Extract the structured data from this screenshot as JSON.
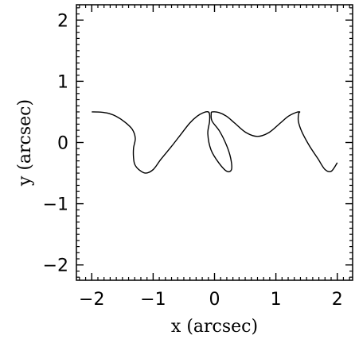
{
  "chart_data": {
    "type": "line",
    "xlabel": "x (arcsec)",
    "ylabel": "y (arcsec)",
    "xlim": [
      -2.25,
      2.25
    ],
    "ylim": [
      -2.25,
      2.25
    ],
    "x_ticks": [
      -2,
      -1,
      0,
      1,
      2
    ],
    "y_ticks": [
      -2,
      -1,
      0,
      1,
      2
    ],
    "x_tick_labels": [
      "−2",
      "−1",
      "0",
      "1",
      "2"
    ],
    "y_tick_labels": [
      "−2",
      "−1",
      "0",
      "1",
      "2"
    ],
    "grid": false,
    "series": [
      {
        "x": [
          -2.0,
          -1.911,
          -1.82,
          -1.719,
          -1.603,
          -1.468,
          -1.343,
          -1.291,
          -1.319,
          -1.32,
          -1.299,
          -1.224,
          -1.119,
          -0.997,
          -0.874,
          -0.7,
          -0.526,
          -0.403,
          -0.282,
          -0.176,
          -0.101,
          -0.08,
          -0.082,
          -0.109,
          -0.057,
          0.068,
          0.2,
          0.277,
          0.264,
          0.198,
          0.083,
          -0.04,
          -0.054,
          -0.036,
          0.07,
          0.194,
          0.328,
          0.514,
          0.7,
          0.886,
          1.072,
          1.205,
          1.326,
          1.387,
          1.371,
          1.366,
          1.419,
          1.544,
          1.682,
          1.799,
          1.902,
          2.0
        ],
        "y": [
          0.5,
          0.499,
          0.493,
          0.474,
          0.428,
          0.34,
          0.22,
          0.07,
          -0.09,
          -0.238,
          -0.358,
          -0.45,
          -0.5,
          -0.44,
          -0.275,
          -0.063,
          0.162,
          0.318,
          0.43,
          0.49,
          0.5,
          0.45,
          0.335,
          0.142,
          -0.12,
          -0.33,
          -0.47,
          -0.44,
          -0.26,
          -0.05,
          0.184,
          0.35,
          0.47,
          0.5,
          0.49,
          0.43,
          0.318,
          0.162,
          0.1,
          0.162,
          0.318,
          0.43,
          0.49,
          0.5,
          0.47,
          0.35,
          0.184,
          -0.05,
          -0.26,
          -0.44,
          -0.47,
          -0.33
        ]
      }
    ]
  }
}
